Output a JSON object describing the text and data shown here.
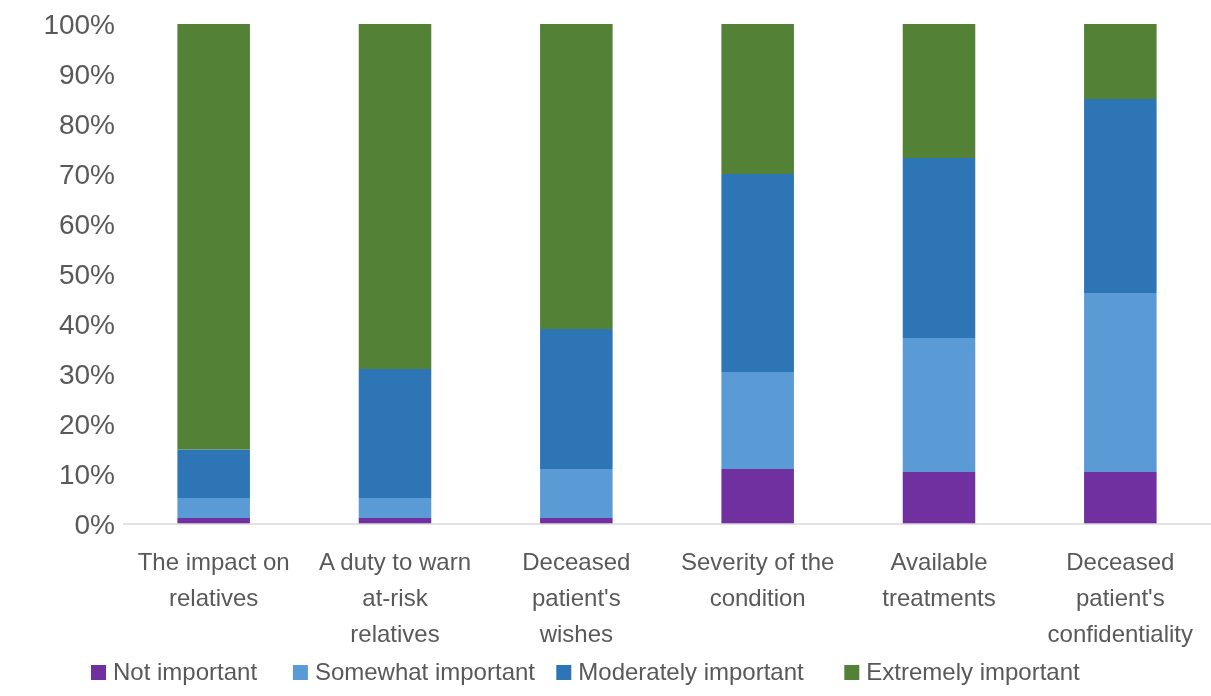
{
  "chart_data": {
    "type": "bar",
    "stacked": true,
    "categories": [
      "The impact on relatives",
      "A duty to warn at-risk relatives",
      "Deceased patient's wishes",
      "Severity of the condition",
      "Available treatments",
      "Deceased patient's confidentiality"
    ],
    "series": [
      {
        "name": "Not important",
        "color": "#7030a0",
        "values": [
          1.2,
          1.2,
          1.2,
          11,
          10.4,
          10.4
        ]
      },
      {
        "name": "Somewhat important",
        "color": "#5b9bd5",
        "values": [
          4,
          4,
          9.8,
          19.4,
          26.8,
          35.8
        ]
      },
      {
        "name": "Moderately important",
        "color": "#2e75b6",
        "values": [
          9.7,
          25.8,
          28,
          39.6,
          36,
          38.8
        ]
      },
      {
        "name": "Extremely important",
        "color": "#538135",
        "values": [
          85.1,
          69,
          61,
          30,
          26.8,
          15
        ]
      }
    ],
    "ylim": [
      0,
      100
    ],
    "yticks": [
      {
        "value": 0,
        "label": "0%"
      },
      {
        "value": 10,
        "label": "10%"
      },
      {
        "value": 20,
        "label": "20%"
      },
      {
        "value": 30,
        "label": "30%"
      },
      {
        "value": 40,
        "label": "40%"
      },
      {
        "value": 50,
        "label": "50%"
      },
      {
        "value": 60,
        "label": "60%"
      },
      {
        "value": 70,
        "label": "70%"
      },
      {
        "value": 80,
        "label": "80%"
      },
      {
        "value": 90,
        "label": "90%"
      },
      {
        "value": 100,
        "label": "100%"
      }
    ],
    "grid": false,
    "legend": "bottom"
  }
}
